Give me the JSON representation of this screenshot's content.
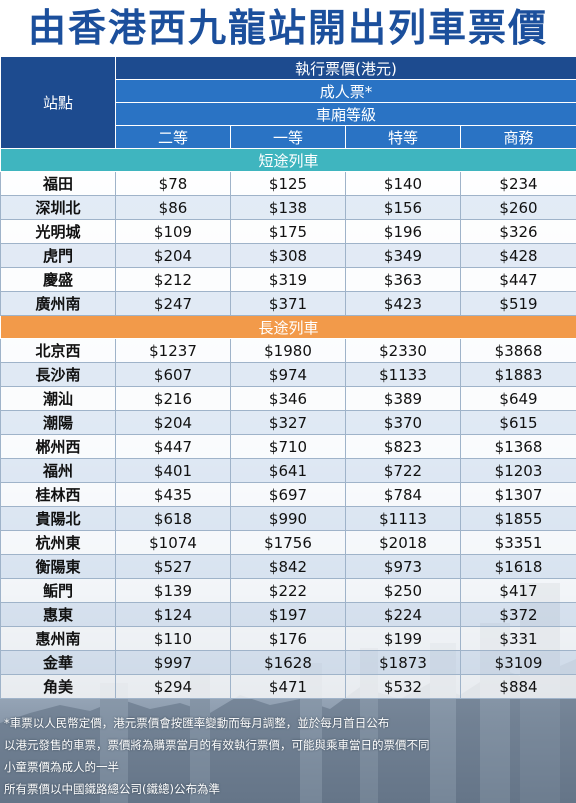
{
  "title": "由香港西九龍站開出列車票價",
  "header": {
    "station_label": "站點",
    "price_label": "執行票價(港元)",
    "adult_label": "成人票*",
    "class_label": "車廂等級",
    "classes": [
      "二等",
      "一等",
      "特等",
      "商務"
    ]
  },
  "short_section": "短途列車",
  "long_section": "長途列車",
  "short_rows": [
    {
      "station": "福田",
      "p": [
        "$78",
        "$125",
        "$140",
        "$234"
      ]
    },
    {
      "station": "深圳北",
      "p": [
        "$86",
        "$138",
        "$156",
        "$260"
      ]
    },
    {
      "station": "光明城",
      "p": [
        "$109",
        "$175",
        "$196",
        "$326"
      ]
    },
    {
      "station": "虎門",
      "p": [
        "$204",
        "$308",
        "$349",
        "$428"
      ]
    },
    {
      "station": "慶盛",
      "p": [
        "$212",
        "$319",
        "$363",
        "$447"
      ]
    },
    {
      "station": "廣州南",
      "p": [
        "$247",
        "$371",
        "$423",
        "$519"
      ]
    }
  ],
  "long_rows": [
    {
      "station": "北京西",
      "p": [
        "$1237",
        "$1980",
        "$2330",
        "$3868"
      ]
    },
    {
      "station": "長沙南",
      "p": [
        "$607",
        "$974",
        "$1133",
        "$1883"
      ]
    },
    {
      "station": "潮汕",
      "p": [
        "$216",
        "$346",
        "$389",
        "$649"
      ]
    },
    {
      "station": "潮陽",
      "p": [
        "$204",
        "$327",
        "$370",
        "$615"
      ]
    },
    {
      "station": "郴州西",
      "p": [
        "$447",
        "$710",
        "$823",
        "$1368"
      ]
    },
    {
      "station": "福州",
      "p": [
        "$401",
        "$641",
        "$722",
        "$1203"
      ]
    },
    {
      "station": "桂林西",
      "p": [
        "$435",
        "$697",
        "$784",
        "$1307"
      ]
    },
    {
      "station": "貴陽北",
      "p": [
        "$618",
        "$990",
        "$1113",
        "$1855"
      ]
    },
    {
      "station": "杭州東",
      "p": [
        "$1074",
        "$1756",
        "$2018",
        "$3351"
      ]
    },
    {
      "station": "衡陽東",
      "p": [
        "$527",
        "$842",
        "$973",
        "$1618"
      ]
    },
    {
      "station": "鲘門",
      "p": [
        "$139",
        "$222",
        "$250",
        "$417"
      ]
    },
    {
      "station": "惠東",
      "p": [
        "$124",
        "$197",
        "$224",
        "$372"
      ]
    },
    {
      "station": "惠州南",
      "p": [
        "$110",
        "$176",
        "$199",
        "$331"
      ]
    },
    {
      "station": "金華",
      "p": [
        "$997",
        "$1628",
        "$1873",
        "$3109"
      ]
    },
    {
      "station": "角美",
      "p": [
        "$294",
        "$471",
        "$532",
        "$884"
      ]
    }
  ],
  "notes": [
    "*車票以人民幣定價，港元票價會按匯率變動而每月調整，並於每月首日公布",
    "以港元發售的車票，票價將為購票當月的有效執行票價，可能與乘車當日的票價不同",
    "小童票價為成人的一半",
    "所有票價以中國鐵路總公司(鐵總)公布為準"
  ],
  "colors": {
    "title": "#1b4f9c",
    "header_dark": "#1d4b8f",
    "header_blue": "#2a73c4",
    "short_section": "#3fb5bf",
    "long_section": "#f29a4a"
  }
}
